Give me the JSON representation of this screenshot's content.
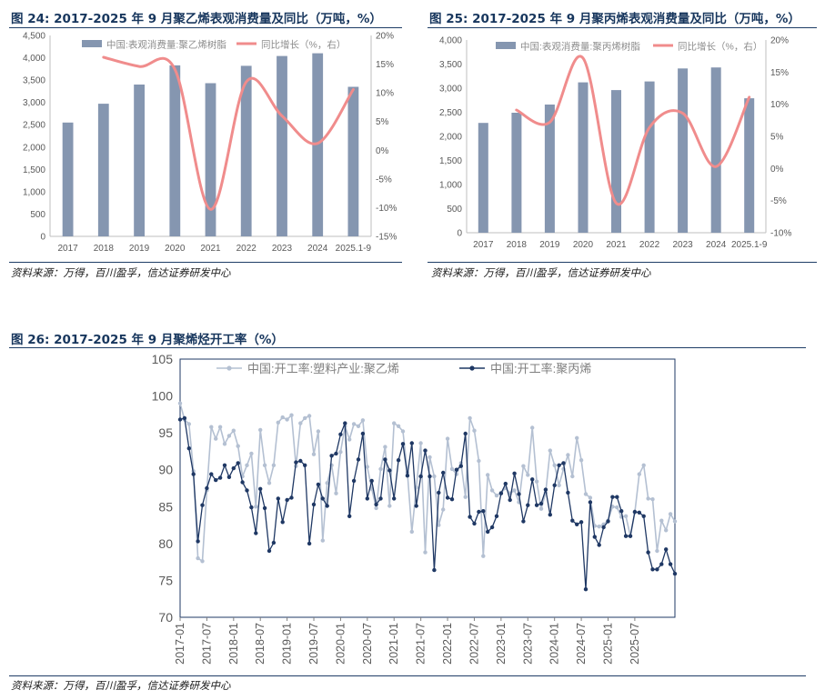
{
  "figures": [
    {
      "title": "图 24:  2017-2025 年 9 月聚乙烯表观消费量及同比（万吨，%）",
      "source": "资料来源：万得，百川盈孚，信达证券研发中心"
    },
    {
      "title": "图 25:  2017-2025 年 9 月聚丙烯表观消费量及同比（万吨，%）",
      "source": "资料来源：万得，百川盈孚，信达证券研发中心"
    },
    {
      "title": "图 26:  2017-2025 年 9 月聚烯烃开工率（%）",
      "source": "资料来源：万得，百川盈孚，信达证券研发中心"
    }
  ],
  "colors": {
    "bar": "#8596b0",
    "yoy_line": "#f08c8c",
    "pe_line": "#b4c0d2",
    "pp_line": "#1f3864",
    "title": "#17365d"
  },
  "chart_data": [
    {
      "type": "bar",
      "categories": [
        "2017",
        "2018",
        "2019",
        "2020",
        "2021",
        "2022",
        "2023",
        "2024",
        "2025.1-9"
      ],
      "series": [
        {
          "name": "中国:表观消费量:聚乙烯树脂",
          "type": "bar",
          "axis": "left",
          "values": [
            2550,
            2970,
            3400,
            3830,
            3430,
            3820,
            4040,
            4100,
            3350
          ]
        },
        {
          "name": "同比增长（%，右）",
          "type": "line",
          "axis": "right",
          "values": [
            null,
            16.2,
            14.6,
            14.1,
            -10.3,
            11.9,
            6.0,
            1.2,
            10.6
          ]
        }
      ],
      "ylim": [
        0,
        4500
      ],
      "y2lim": [
        -15,
        20
      ],
      "y_ticks": [
        "0",
        "500",
        "1,000",
        "1,500",
        "2,000",
        "2,500",
        "3,000",
        "3,500",
        "4,000",
        "4,500"
      ],
      "y2_ticks": [
        "-15%",
        "-10%",
        "-5%",
        "0%",
        "5%",
        "10%",
        "15%",
        "20%"
      ],
      "legend": "top"
    },
    {
      "type": "bar",
      "categories": [
        "2017",
        "2018",
        "2019",
        "2020",
        "2021",
        "2022",
        "2023",
        "2024",
        "2025.1-9"
      ],
      "series": [
        {
          "name": "中国:表观消费量:聚丙烯树脂",
          "type": "bar",
          "axis": "left",
          "values": [
            2280,
            2490,
            2660,
            3120,
            2960,
            3140,
            3410,
            3430,
            2790
          ]
        },
        {
          "name": "同比增长（%，右）",
          "type": "line",
          "axis": "right",
          "values": [
            null,
            9.1,
            7.2,
            17.2,
            -5.4,
            6.4,
            8.6,
            0.3,
            11.1
          ]
        }
      ],
      "ylim": [
        0,
        4000
      ],
      "y2lim": [
        -10,
        20
      ],
      "y_ticks": [
        "0",
        "500",
        "1,000",
        "1,500",
        "2,000",
        "2,500",
        "3,000",
        "3,500",
        "4,000"
      ],
      "y2_ticks": [
        "-10%",
        "-5%",
        "0%",
        "5%",
        "10%",
        "15%",
        "20%"
      ],
      "legend": "top"
    },
    {
      "type": "line",
      "start": "2017-01",
      "x_ticks": [
        "2017-01",
        "2017-07",
        "2018-01",
        "2018-07",
        "2019-01",
        "2019-07",
        "2020-01",
        "2020-07",
        "2021-01",
        "2021-07",
        "2022-01",
        "2022-07",
        "2023-01",
        "2023-07",
        "2024-01",
        "2024-07",
        "2025-01",
        "2025-07"
      ],
      "series": [
        {
          "name": "中国:开工率:塑料产业:聚乙烯",
          "values": [
            99.0,
            96.8,
            96.2,
            89.8,
            78.0,
            77.6,
            87.2,
            95.8,
            94.2,
            95.8,
            93.5,
            94.6,
            95.3,
            93.2,
            89.1,
            90.6,
            92.2,
            85.0,
            95.4,
            90.6,
            88.2,
            90.6,
            96.4,
            97.1,
            96.8,
            97.4,
            90.5,
            96.3,
            97.0,
            97.3,
            92.1,
            95.2,
            80.4,
            88.2,
            90.6,
            86.8,
            92.4,
            95.9,
            94.1,
            96.2,
            95.9,
            96.7,
            90.4,
            87.4,
            84.8,
            90.1,
            93.1,
            85.1,
            96.3,
            95.9,
            95.2,
            89.6,
            81.6,
            87.6,
            93.6,
            78.8,
            91.7,
            89.1,
            82.5,
            84.6,
            94.2,
            90.1,
            89.4,
            90.9,
            86.3,
            97.0,
            95.3,
            91.2,
            78.3,
            89.3,
            87.2,
            86.5,
            86.9,
            87.5,
            86.8,
            87.2,
            85.6,
            90.5,
            89.3,
            95.7,
            88.4,
            84.7,
            86.9,
            92.6,
            90.6,
            87.9,
            90.1,
            92.0,
            89.1,
            94.3,
            91.3,
            86.7,
            86.2,
            82.4,
            82.3,
            82.6,
            83.1,
            85.0,
            84.9,
            83.6,
            83.7,
            81.0,
            84.2,
            89.4,
            90.6,
            86.1,
            86.0,
            79.0,
            83.1,
            81.8,
            84.0,
            83.0
          ]
        },
        {
          "name": "中国:开工率:聚丙烯",
          "values": [
            96.8,
            97.0,
            92.9,
            89.4,
            80.3,
            85.2,
            87.5,
            89.4,
            88.6,
            88.9,
            90.6,
            89.0,
            90.2,
            90.9,
            88.3,
            87.2,
            84.9,
            81.4,
            87.4,
            84.8,
            79.0,
            80.1,
            86.1,
            82.9,
            85.9,
            86.2,
            91.0,
            91.2,
            90.6,
            80.0,
            85.3,
            88.0,
            86.1,
            85.1,
            91.9,
            92.2,
            94.8,
            96.3,
            83.7,
            88.5,
            91.4,
            94.9,
            86.1,
            88.5,
            85.3,
            86.1,
            91.4,
            89.9,
            86.1,
            91.3,
            93.5,
            89.2,
            93.6,
            85.1,
            89.1,
            92.6,
            89.1,
            76.4,
            86.9,
            89.6,
            86.2,
            86.0,
            90.0,
            90.5,
            94.9,
            83.6,
            82.7,
            84.3,
            84.4,
            81.6,
            82.2,
            83.7,
            86.8,
            88.1,
            85.9,
            89.5,
            86.7,
            83.0,
            85.2,
            88.7,
            85.2,
            85.4,
            87.3,
            83.9,
            87.9,
            90.6,
            90.9,
            86.9,
            83.1,
            82.6,
            82.9,
            73.8,
            85.6,
            80.9,
            79.8,
            82.2,
            83.0,
            86.3,
            86.3,
            84.4,
            81.0,
            81.0,
            84.3,
            84.2,
            83.7,
            78.8,
            76.5,
            76.5,
            77.2,
            79.2,
            77.2,
            75.9
          ]
        }
      ],
      "ylim": [
        70,
        105
      ],
      "y_ticks": [
        "70",
        "75",
        "80",
        "85",
        "90",
        "95",
        "100",
        "105"
      ],
      "legend": "top"
    }
  ]
}
